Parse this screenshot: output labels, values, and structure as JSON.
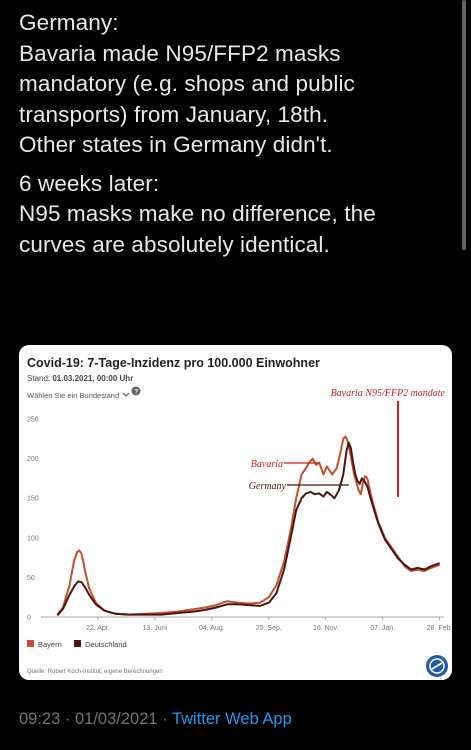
{
  "tweet": {
    "paragraph1_lines": [
      "Germany:",
      "Bavaria made N95/FFP2 masks",
      "mandatory (e.g. shops and public",
      "transports) from January, 18th.",
      "Other states in Germany didn't."
    ],
    "paragraph2_lines": [
      "6 weeks later:",
      "N95 masks make no difference, the",
      "curves are absolutely identical."
    ]
  },
  "meta": {
    "time": "09:23",
    "separator": " · ",
    "date": "01/03/2021",
    "app": "Twitter Web App"
  },
  "chart_data": {
    "type": "line",
    "title": "Covid-19: 7-Tage-Inzidenz pro 100.000 Einwohner",
    "stand_prefix": "Stand: ",
    "stand_value": "01.03.2021, 00:00 Uhr",
    "dropdown_label": "Wählen Sie ein Bundesland",
    "source": "Quelle: Robert Koch-Institut, eigene Berechnungen",
    "x_ticks": [
      "22. Apr.",
      "13. Juni",
      "04. Aug.",
      "25. Sep.",
      "16. Nov.",
      "07. Jan.",
      "28. Feb."
    ],
    "x_tick_days": [
      52,
      104,
      156,
      208,
      260,
      312,
      364
    ],
    "ylim": [
      0,
      250
    ],
    "y_ticks": [
      0,
      50,
      100,
      150,
      200,
      250
    ],
    "series": [
      {
        "name": "Bayern",
        "color": "#c1502e",
        "points": [
          [
            15,
            3
          ],
          [
            20,
            12
          ],
          [
            26,
            40
          ],
          [
            30,
            70
          ],
          [
            33,
            82
          ],
          [
            35,
            84
          ],
          [
            37,
            80
          ],
          [
            40,
            60
          ],
          [
            44,
            36
          ],
          [
            50,
            18
          ],
          [
            58,
            8
          ],
          [
            68,
            4
          ],
          [
            80,
            3
          ],
          [
            95,
            4
          ],
          [
            110,
            5
          ],
          [
            125,
            7
          ],
          [
            140,
            10
          ],
          [
            150,
            12
          ],
          [
            160,
            15
          ],
          [
            170,
            20
          ],
          [
            180,
            18
          ],
          [
            190,
            17
          ],
          [
            200,
            18
          ],
          [
            208,
            25
          ],
          [
            215,
            40
          ],
          [
            222,
            70
          ],
          [
            228,
            110
          ],
          [
            233,
            150
          ],
          [
            238,
            180
          ],
          [
            242,
            188
          ],
          [
            245,
            195
          ],
          [
            248,
            200
          ],
          [
            251,
            192
          ],
          [
            254,
            195
          ],
          [
            258,
            180
          ],
          [
            261,
            190
          ],
          [
            266,
            180
          ],
          [
            270,
            188
          ],
          [
            273,
            205
          ],
          [
            276,
            225
          ],
          [
            278,
            228
          ],
          [
            280,
            222
          ],
          [
            282,
            210
          ],
          [
            284,
            195
          ],
          [
            286,
            180
          ],
          [
            288,
            170
          ],
          [
            290,
            160
          ],
          [
            292,
            155
          ],
          [
            294,
            170
          ],
          [
            296,
            178
          ],
          [
            298,
            175
          ],
          [
            302,
            150
          ],
          [
            308,
            120
          ],
          [
            314,
            100
          ],
          [
            320,
            88
          ],
          [
            326,
            76
          ],
          [
            332,
            64
          ],
          [
            338,
            58
          ],
          [
            344,
            60
          ],
          [
            350,
            58
          ],
          [
            356,
            62
          ],
          [
            362,
            65
          ],
          [
            364,
            66
          ]
        ]
      },
      {
        "name": "Deutschland",
        "color": "#4a1410",
        "points": [
          [
            15,
            2
          ],
          [
            20,
            10
          ],
          [
            26,
            28
          ],
          [
            31,
            40
          ],
          [
            34,
            45
          ],
          [
            37,
            44
          ],
          [
            40,
            38
          ],
          [
            44,
            28
          ],
          [
            50,
            16
          ],
          [
            58,
            8
          ],
          [
            68,
            4
          ],
          [
            80,
            3
          ],
          [
            95,
            3
          ],
          [
            110,
            3
          ],
          [
            125,
            5
          ],
          [
            140,
            7
          ],
          [
            150,
            9
          ],
          [
            160,
            12
          ],
          [
            170,
            16
          ],
          [
            180,
            16
          ],
          [
            190,
            15
          ],
          [
            200,
            14
          ],
          [
            208,
            18
          ],
          [
            215,
            30
          ],
          [
            222,
            60
          ],
          [
            228,
            100
          ],
          [
            233,
            135
          ],
          [
            238,
            150
          ],
          [
            242,
            156
          ],
          [
            246,
            158
          ],
          [
            250,
            155
          ],
          [
            254,
            156
          ],
          [
            258,
            152
          ],
          [
            261,
            158
          ],
          [
            264,
            155
          ],
          [
            268,
            150
          ],
          [
            272,
            160
          ],
          [
            276,
            180
          ],
          [
            279,
            210
          ],
          [
            281,
            220
          ],
          [
            283,
            213
          ],
          [
            285,
            195
          ],
          [
            287,
            180
          ],
          [
            289,
            172
          ],
          [
            291,
            168
          ],
          [
            293,
            175
          ],
          [
            295,
            172
          ],
          [
            298,
            165
          ],
          [
            302,
            145
          ],
          [
            308,
            118
          ],
          [
            314,
            98
          ],
          [
            320,
            86
          ],
          [
            326,
            74
          ],
          [
            332,
            66
          ],
          [
            338,
            60
          ],
          [
            344,
            62
          ],
          [
            350,
            60
          ],
          [
            356,
            64
          ],
          [
            362,
            67
          ],
          [
            364,
            68
          ]
        ]
      }
    ],
    "annotations": {
      "mandate": "Bavaria N95/FFP2 mandate",
      "bavaria": "Bavaria",
      "germany": "Germany"
    },
    "legend": {
      "placement": "bottom-left"
    },
    "grid": false
  },
  "colors": {
    "background": "#000000",
    "text": "#e7e9ea",
    "meta": "#71767b",
    "link": "#1d9bf0",
    "annotation_red": "#d21f1f"
  }
}
